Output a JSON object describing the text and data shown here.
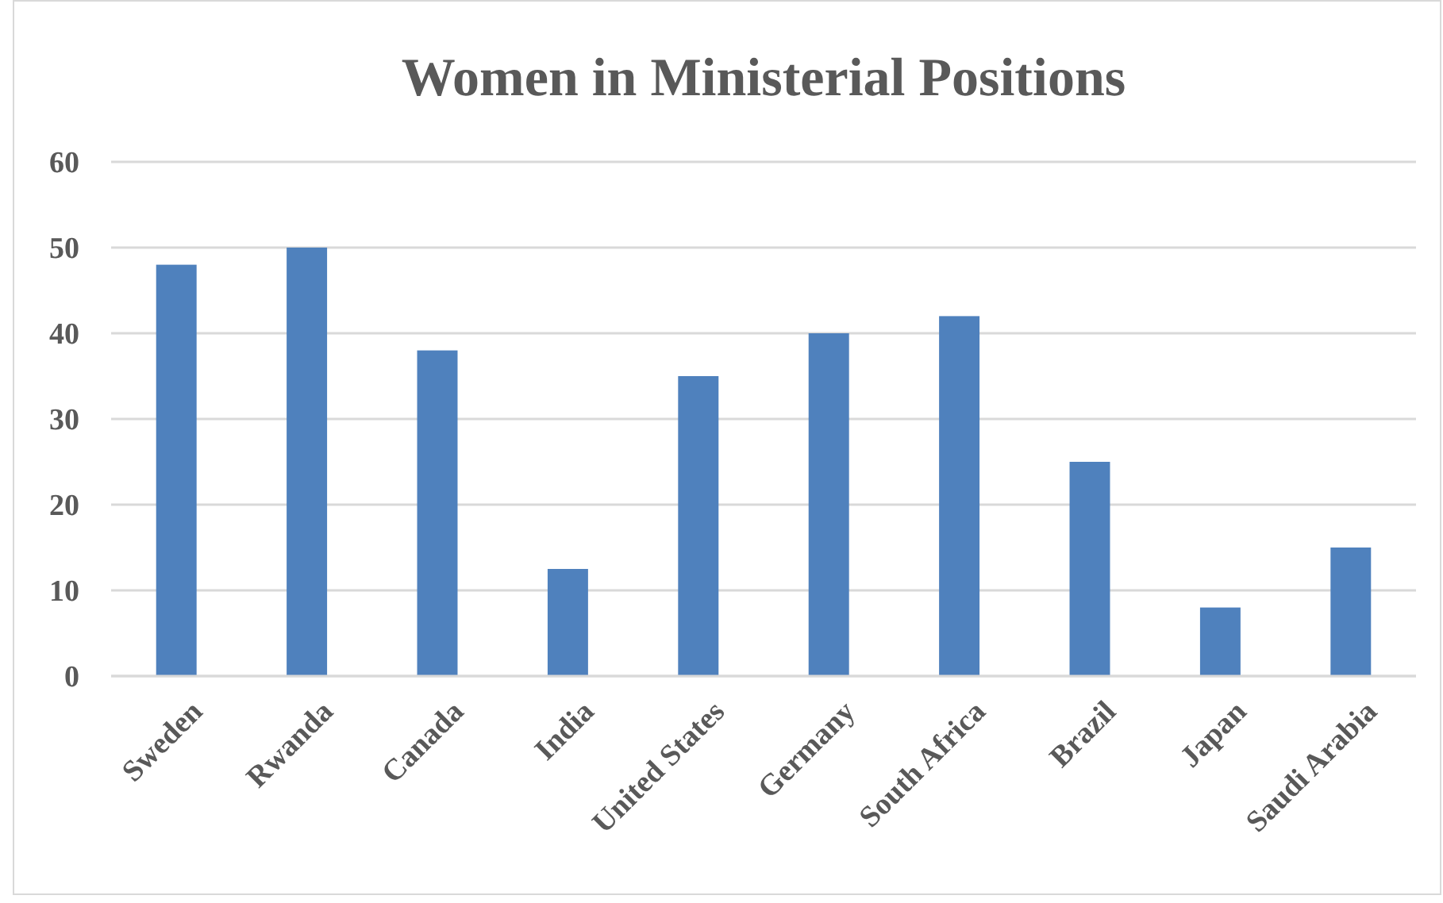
{
  "chart_data": {
    "type": "bar",
    "title": "Women in Ministerial Positions",
    "categories": [
      "Sweden",
      "Rwanda",
      "Canada",
      "India",
      "United States",
      "Germany",
      "South Africa",
      "Brazil",
      "Japan",
      "Saudi Arabia"
    ],
    "values": [
      48,
      50,
      38,
      12.5,
      35,
      40,
      42,
      25,
      8,
      15
    ],
    "color": "#4f81bd",
    "ylim": [
      0,
      60
    ],
    "yticks": [
      0,
      10,
      20,
      30,
      40,
      50,
      60
    ],
    "grid": "y"
  }
}
